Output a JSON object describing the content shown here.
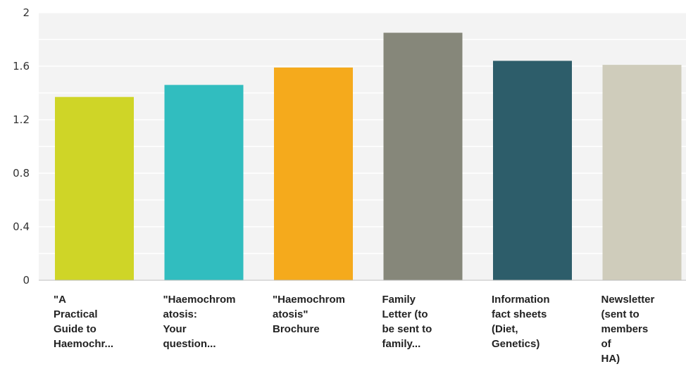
{
  "chart_data": {
    "type": "bar",
    "categories": [
      [
        "\"A",
        "Practical",
        "Guide to",
        "Haemochr..."
      ],
      [
        "\"Haemochrom",
        "atosis:",
        "Your",
        "question..."
      ],
      [
        "\"Haemochrom",
        "atosis\"",
        "Brochure"
      ],
      [
        "Family",
        "Letter (to",
        "be sent to",
        "family..."
      ],
      [
        "Information",
        "fact sheets",
        "(Diet,",
        "Genetics)"
      ],
      [
        "Newsletter",
        "(sent to",
        "members",
        "of",
        "HA)"
      ]
    ],
    "values": [
      1.37,
      1.46,
      1.59,
      1.85,
      1.64,
      1.61
    ],
    "colors": [
      "#cfd527",
      "#31bdbf",
      "#f5aa1c",
      "#86877a",
      "#2d5d6a",
      "#cfccbb"
    ],
    "ylim": [
      0,
      2
    ],
    "yticks": [
      "0",
      "0.4",
      "0.8",
      "1.2",
      "1.6",
      "2"
    ],
    "title": "",
    "xlabel": "",
    "ylabel": "",
    "grid": true
  }
}
